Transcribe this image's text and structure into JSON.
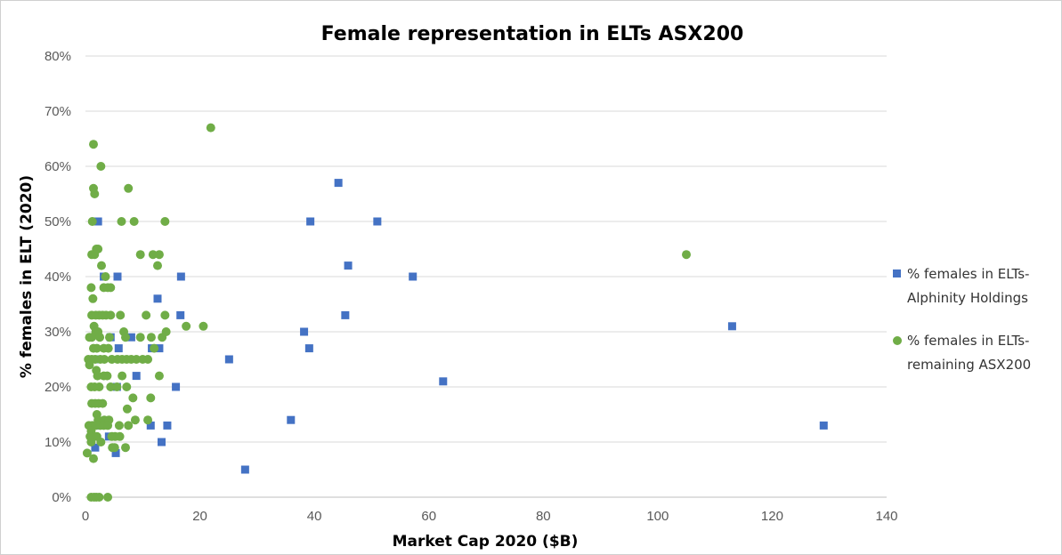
{
  "chart_data": {
    "type": "scatter",
    "title": "Female representation in ELTs ASX200",
    "xlabel": "Market Cap 2020 ($B)",
    "ylabel": "% females in ELT (2020)",
    "xlim": [
      0,
      140
    ],
    "ylim": [
      0,
      0.8
    ],
    "x_ticks": [
      0,
      20,
      40,
      60,
      80,
      100,
      120,
      140
    ],
    "x_tick_labels": [
      "0",
      "20",
      "40",
      "60",
      "80",
      "100",
      "120",
      "140"
    ],
    "y_ticks": [
      0,
      0.1,
      0.2,
      0.3,
      0.4,
      0.5,
      0.6,
      0.7,
      0.8
    ],
    "y_tick_labels": [
      "0%",
      "10%",
      "20%",
      "30%",
      "40%",
      "50%",
      "60%",
      "70%",
      "80%"
    ],
    "grid": "horizontal",
    "legend_position": "right",
    "series": [
      {
        "name": "% females in ELTs-Alphinity Holdings",
        "legend_lines": [
          "% females in ELTs-",
          "Alphinity Holdings"
        ],
        "marker": "square",
        "color": "#4472C4",
        "points": [
          [
            129,
            0.13
          ],
          [
            113,
            0.31
          ],
          [
            62.5,
            0.21
          ],
          [
            57.2,
            0.4
          ],
          [
            51,
            0.5
          ],
          [
            45.9,
            0.42
          ],
          [
            45.4,
            0.33
          ],
          [
            44.2,
            0.57
          ],
          [
            39.3,
            0.5
          ],
          [
            39.1,
            0.27
          ],
          [
            38.2,
            0.3
          ],
          [
            35.9,
            0.14
          ],
          [
            27.9,
            0.05
          ],
          [
            25.1,
            0.25
          ],
          [
            16.7,
            0.4
          ],
          [
            16.6,
            0.33
          ],
          [
            15.8,
            0.2
          ],
          [
            14.3,
            0.13
          ],
          [
            13.3,
            0.1
          ],
          [
            12.9,
            0.27
          ],
          [
            12.6,
            0.36
          ],
          [
            11.6,
            0.27
          ],
          [
            11.4,
            0.13
          ],
          [
            8.9,
            0.22
          ],
          [
            8,
            0.29
          ],
          [
            5.8,
            0.27
          ],
          [
            5.6,
            0.4
          ],
          [
            5.5,
            0.2
          ],
          [
            5.3,
            0.08
          ],
          [
            4.4,
            0.29
          ],
          [
            4.1,
            0.11
          ],
          [
            3.2,
            0.4
          ],
          [
            2.2,
            0.5
          ],
          [
            2.5,
            0.33
          ],
          [
            2,
            0.25
          ],
          [
            1.7,
            0.09
          ],
          [
            2.3,
            0.13
          ]
        ]
      },
      {
        "name": "% females in ELTs-remaining ASX200",
        "legend_lines": [
          "% females in ELTs-",
          "remaining ASX200"
        ],
        "marker": "circle",
        "color": "#70AD47",
        "points": [
          [
            21.9,
            0.67
          ],
          [
            105,
            0.44
          ],
          [
            1.4,
            0.64
          ],
          [
            2.7,
            0.6
          ],
          [
            1.4,
            0.56
          ],
          [
            1.6,
            0.55
          ],
          [
            7.5,
            0.56
          ],
          [
            1.2,
            0.5
          ],
          [
            6.3,
            0.5
          ],
          [
            8.5,
            0.5
          ],
          [
            13.9,
            0.5
          ],
          [
            1.9,
            0.45
          ],
          [
            2.2,
            0.45
          ],
          [
            1.1,
            0.44
          ],
          [
            1.6,
            0.44
          ],
          [
            9.6,
            0.44
          ],
          [
            11.8,
            0.44
          ],
          [
            12.9,
            0.44
          ],
          [
            2.8,
            0.42
          ],
          [
            12.6,
            0.42
          ],
          [
            3.5,
            0.4
          ],
          [
            1.0,
            0.38
          ],
          [
            3.2,
            0.38
          ],
          [
            3.9,
            0.38
          ],
          [
            4.4,
            0.38
          ],
          [
            1.3,
            0.36
          ],
          [
            1.1,
            0.33
          ],
          [
            1.8,
            0.33
          ],
          [
            2.4,
            0.33
          ],
          [
            3.0,
            0.33
          ],
          [
            3.6,
            0.33
          ],
          [
            4.4,
            0.33
          ],
          [
            6.1,
            0.33
          ],
          [
            10.6,
            0.33
          ],
          [
            13.9,
            0.33
          ],
          [
            1.5,
            0.31
          ],
          [
            1.8,
            0.3
          ],
          [
            2.2,
            0.3
          ],
          [
            6.7,
            0.3
          ],
          [
            14.1,
            0.3
          ],
          [
            17.6,
            0.31
          ],
          [
            20.6,
            0.31
          ],
          [
            0.7,
            0.29
          ],
          [
            1.1,
            0.29
          ],
          [
            2.5,
            0.29
          ],
          [
            4.2,
            0.29
          ],
          [
            7.0,
            0.29
          ],
          [
            9.6,
            0.29
          ],
          [
            11.5,
            0.29
          ],
          [
            13.4,
            0.29
          ],
          [
            1.4,
            0.27
          ],
          [
            2.0,
            0.27
          ],
          [
            3.2,
            0.27
          ],
          [
            4.0,
            0.27
          ],
          [
            12.0,
            0.27
          ],
          [
            0.5,
            0.25
          ],
          [
            1.1,
            0.25
          ],
          [
            1.7,
            0.25
          ],
          [
            2.6,
            0.25
          ],
          [
            3.3,
            0.25
          ],
          [
            4.6,
            0.25
          ],
          [
            5.6,
            0.25
          ],
          [
            6.4,
            0.25
          ],
          [
            7.2,
            0.25
          ],
          [
            8.0,
            0.25
          ],
          [
            8.9,
            0.25
          ],
          [
            10.0,
            0.25
          ],
          [
            10.9,
            0.25
          ],
          [
            0.7,
            0.24
          ],
          [
            1.9,
            0.23
          ],
          [
            2.1,
            0.22
          ],
          [
            3.2,
            0.22
          ],
          [
            3.8,
            0.22
          ],
          [
            6.4,
            0.22
          ],
          [
            12.9,
            0.22
          ],
          [
            1.0,
            0.2
          ],
          [
            1.6,
            0.2
          ],
          [
            2.4,
            0.2
          ],
          [
            4.4,
            0.2
          ],
          [
            5.5,
            0.2
          ],
          [
            7.2,
            0.2
          ],
          [
            8.3,
            0.18
          ],
          [
            11.4,
            0.18
          ],
          [
            1.1,
            0.17
          ],
          [
            1.7,
            0.17
          ],
          [
            2.3,
            0.17
          ],
          [
            3.0,
            0.17
          ],
          [
            7.3,
            0.16
          ],
          [
            2.0,
            0.15
          ],
          [
            2.2,
            0.14
          ],
          [
            3.3,
            0.14
          ],
          [
            4.1,
            0.14
          ],
          [
            8.7,
            0.14
          ],
          [
            10.9,
            0.14
          ],
          [
            0.6,
            0.13
          ],
          [
            1.2,
            0.13
          ],
          [
            1.8,
            0.13
          ],
          [
            2.6,
            0.13
          ],
          [
            3.2,
            0.13
          ],
          [
            3.9,
            0.13
          ],
          [
            5.9,
            0.13
          ],
          [
            7.5,
            0.13
          ],
          [
            1.0,
            0.12
          ],
          [
            0.8,
            0.11
          ],
          [
            2.0,
            0.11
          ],
          [
            4.6,
            0.11
          ],
          [
            5.2,
            0.11
          ],
          [
            6.0,
            0.11
          ],
          [
            1.0,
            0.1
          ],
          [
            2.7,
            0.1
          ],
          [
            4.7,
            0.09
          ],
          [
            5.1,
            0.09
          ],
          [
            7.0,
            0.09
          ],
          [
            0.3,
            0.08
          ],
          [
            1.4,
            0.07
          ],
          [
            1.0,
            0.0
          ],
          [
            1.5,
            0.0
          ],
          [
            1.9,
            0.0
          ],
          [
            2.4,
            0.0
          ],
          [
            3.9,
            0.0
          ]
        ]
      }
    ]
  }
}
